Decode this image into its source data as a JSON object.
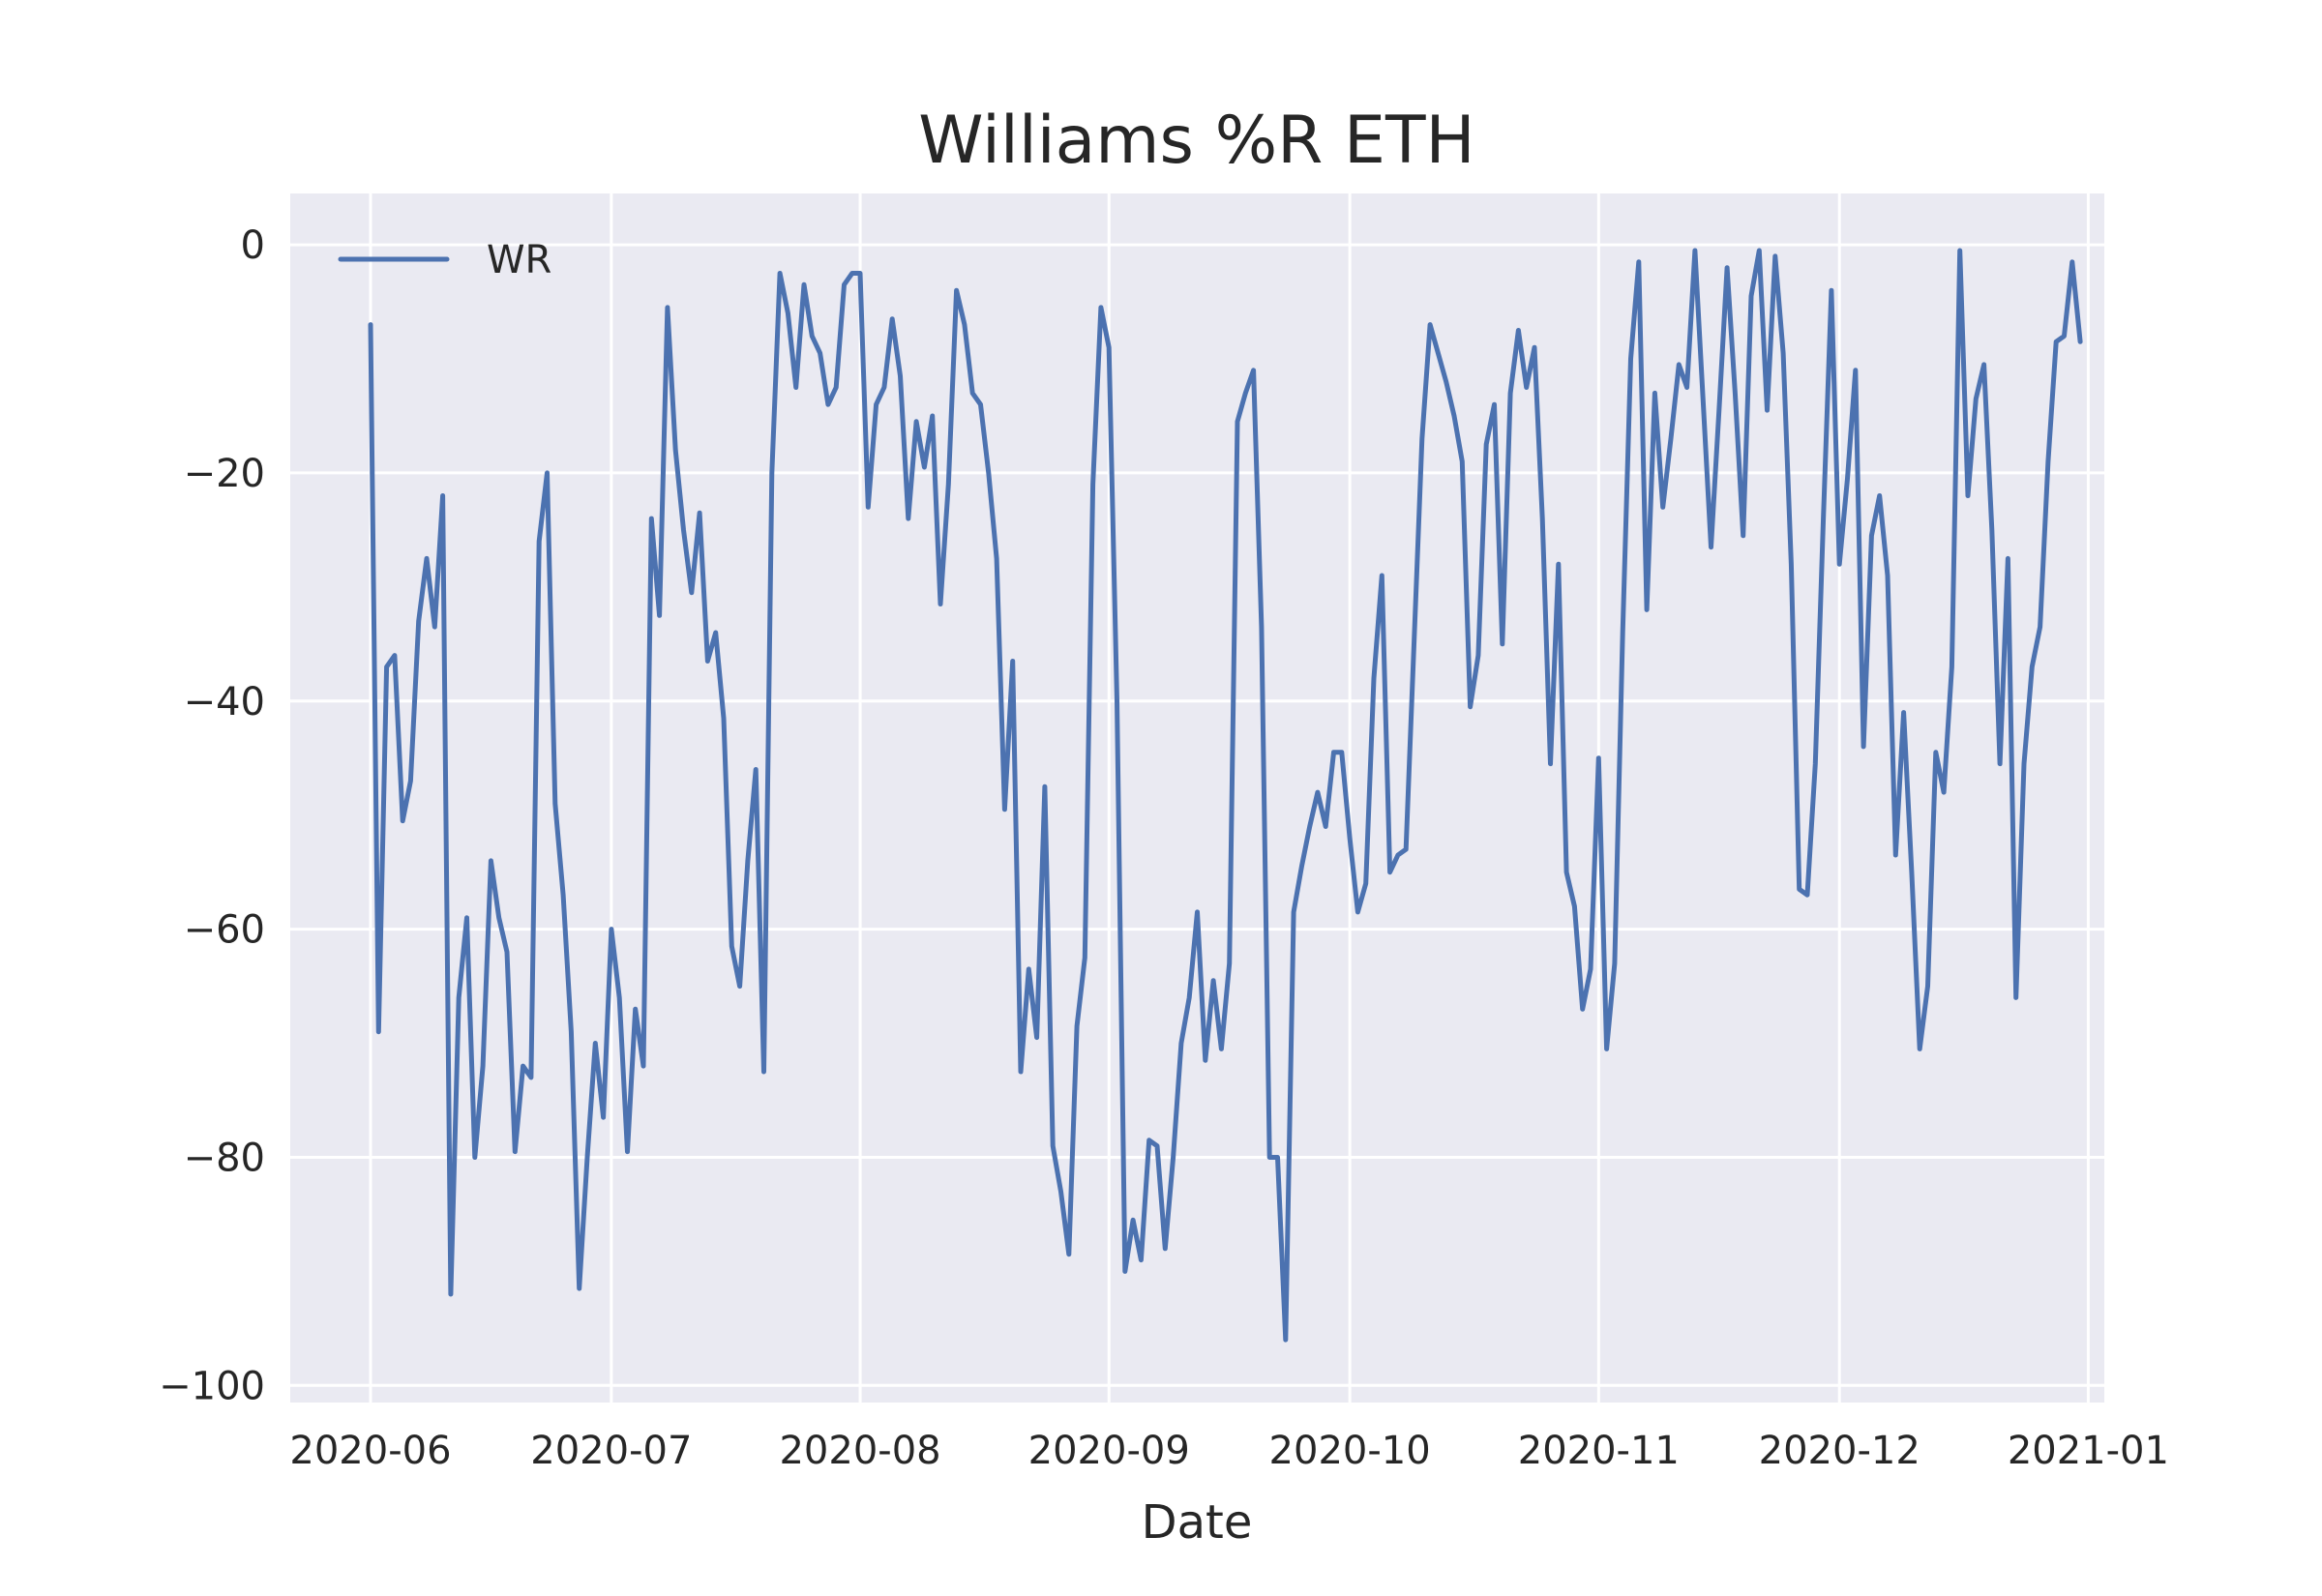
{
  "chart_data": {
    "type": "line",
    "title": "Williams %R ETH",
    "xlabel": "Date",
    "ylabel": "",
    "x_range": [
      "2020-05-22",
      "2021-01-03"
    ],
    "ylim": [
      -101.5,
      4.5
    ],
    "grid": true,
    "legend_placement": "top-left",
    "x_ticks": [
      "2020-06-01",
      "2020-07-01",
      "2020-08-01",
      "2020-09-01",
      "2020-10-01",
      "2020-11-01",
      "2020-12-01",
      "2021-01-01"
    ],
    "x_tick_labels": [
      "2020-06",
      "2020-07",
      "2020-08",
      "2020-09",
      "2020-10",
      "2020-11",
      "2020-12",
      "2021-01"
    ],
    "y_ticks": [
      0,
      -20,
      -40,
      -60,
      -80,
      -100
    ],
    "y_tick_labels": [
      "0",
      "−20",
      "−40",
      "−60",
      "−80",
      "−100"
    ],
    "series": [
      {
        "name": "WR",
        "color": "#4c72b0",
        "x": [
          "2020-06-01",
          "2020-06-02",
          "2020-06-03",
          "2020-06-04",
          "2020-06-05",
          "2020-06-06",
          "2020-06-07",
          "2020-06-08",
          "2020-06-09",
          "2020-06-10",
          "2020-06-11",
          "2020-06-12",
          "2020-06-13",
          "2020-06-14",
          "2020-06-15",
          "2020-06-16",
          "2020-06-17",
          "2020-06-18",
          "2020-06-19",
          "2020-06-20",
          "2020-06-21",
          "2020-06-22",
          "2020-06-23",
          "2020-06-24",
          "2020-06-25",
          "2020-06-26",
          "2020-06-27",
          "2020-06-28",
          "2020-06-29",
          "2020-06-30",
          "2020-07-01",
          "2020-07-02",
          "2020-07-03",
          "2020-07-04",
          "2020-07-05",
          "2020-07-06",
          "2020-07-07",
          "2020-07-08",
          "2020-07-09",
          "2020-07-10",
          "2020-07-11",
          "2020-07-12",
          "2020-07-13",
          "2020-07-14",
          "2020-07-15",
          "2020-07-16",
          "2020-07-17",
          "2020-07-18",
          "2020-07-19",
          "2020-07-20",
          "2020-07-21",
          "2020-07-22",
          "2020-07-23",
          "2020-07-24",
          "2020-07-25",
          "2020-07-26",
          "2020-07-27",
          "2020-07-28",
          "2020-07-29",
          "2020-07-30",
          "2020-07-31",
          "2020-08-01",
          "2020-08-02",
          "2020-08-03",
          "2020-08-04",
          "2020-08-05",
          "2020-08-06",
          "2020-08-07",
          "2020-08-08",
          "2020-08-09",
          "2020-08-10",
          "2020-08-11",
          "2020-08-12",
          "2020-08-13",
          "2020-08-14",
          "2020-08-15",
          "2020-08-16",
          "2020-08-17",
          "2020-08-18",
          "2020-08-19",
          "2020-08-20",
          "2020-08-21",
          "2020-08-22",
          "2020-08-23",
          "2020-08-24",
          "2020-08-25",
          "2020-08-26",
          "2020-08-27",
          "2020-08-28",
          "2020-08-29",
          "2020-08-30",
          "2020-08-31",
          "2020-09-01",
          "2020-09-02",
          "2020-09-03",
          "2020-09-04",
          "2020-09-05",
          "2020-09-06",
          "2020-09-07",
          "2020-09-08",
          "2020-09-09",
          "2020-09-10",
          "2020-09-11",
          "2020-09-12",
          "2020-09-13",
          "2020-09-14",
          "2020-09-15",
          "2020-09-16",
          "2020-09-17",
          "2020-09-18",
          "2020-09-19",
          "2020-09-20",
          "2020-09-21",
          "2020-09-22",
          "2020-09-23",
          "2020-09-24",
          "2020-09-25",
          "2020-09-26",
          "2020-09-27",
          "2020-09-28",
          "2020-09-29",
          "2020-09-30",
          "2020-10-01",
          "2020-10-02",
          "2020-10-03",
          "2020-10-04",
          "2020-10-05",
          "2020-10-06",
          "2020-10-07",
          "2020-10-08",
          "2020-10-09",
          "2020-10-10",
          "2020-10-11",
          "2020-10-12",
          "2020-10-13",
          "2020-10-14",
          "2020-10-15",
          "2020-10-16",
          "2020-10-17",
          "2020-10-18",
          "2020-10-19",
          "2020-10-20",
          "2020-10-21",
          "2020-10-22",
          "2020-10-23",
          "2020-10-24",
          "2020-10-25",
          "2020-10-26",
          "2020-10-27",
          "2020-10-28",
          "2020-10-29",
          "2020-10-30",
          "2020-10-31",
          "2020-11-01",
          "2020-11-02",
          "2020-11-03",
          "2020-11-04",
          "2020-11-05",
          "2020-11-06",
          "2020-11-07",
          "2020-11-08",
          "2020-11-09",
          "2020-11-10",
          "2020-11-11",
          "2020-11-12",
          "2020-11-13",
          "2020-11-14",
          "2020-11-15",
          "2020-11-16",
          "2020-11-17",
          "2020-11-18",
          "2020-11-19",
          "2020-11-20",
          "2020-11-21",
          "2020-11-22",
          "2020-11-23",
          "2020-11-24",
          "2020-11-25",
          "2020-11-26",
          "2020-11-27",
          "2020-11-28",
          "2020-11-29",
          "2020-11-30",
          "2020-12-01",
          "2020-12-02",
          "2020-12-03",
          "2020-12-04",
          "2020-12-05",
          "2020-12-06",
          "2020-12-07",
          "2020-12-08",
          "2020-12-09",
          "2020-12-10",
          "2020-12-11",
          "2020-12-12",
          "2020-12-13",
          "2020-12-14",
          "2020-12-15",
          "2020-12-16",
          "2020-12-17",
          "2020-12-18",
          "2020-12-19",
          "2020-12-20",
          "2020-12-21",
          "2020-12-22",
          "2020-12-23",
          "2020-12-24",
          "2020-12-25",
          "2020-12-26",
          "2020-12-27",
          "2020-12-28",
          "2020-12-29",
          "2020-12-30",
          "2020-12-31"
        ],
        "y": [
          -7,
          -69,
          -37,
          -36,
          -50.5,
          -47,
          -33,
          -27.5,
          -33.5,
          -22,
          -92,
          -66,
          -59,
          -80,
          -72,
          -54,
          -59,
          -62,
          -79.5,
          -72,
          -73,
          -26,
          -20,
          -49,
          -57,
          -69,
          -91.5,
          -80,
          -70,
          -76.5,
          -60,
          -66,
          -79.5,
          -67,
          -72,
          -24,
          -32.5,
          -5.5,
          -18,
          -25,
          -30.5,
          -23.5,
          -36.5,
          -34,
          -41.5,
          -61.5,
          -65,
          -54,
          -46,
          -72.5,
          -20,
          -2.5,
          -6,
          -12.5,
          -3.5,
          -8,
          -9.5,
          -14,
          -12.5,
          -3.5,
          -2.5,
          -2.5,
          -23,
          -14,
          -12.5,
          -6.5,
          -11.5,
          -24,
          -15.5,
          -19.5,
          -15,
          -31.5,
          -21,
          -4,
          -7,
          -13,
          -14,
          -20,
          -27.5,
          -49.5,
          -36.5,
          -72.5,
          -63.5,
          -69.5,
          -47.5,
          -79,
          -83,
          -88.5,
          -68.5,
          -62.5,
          -21,
          -5.5,
          -9,
          -40,
          -90,
          -85.5,
          -89,
          -78.5,
          -79,
          -88,
          -80,
          -70,
          -66,
          -58.5,
          -71.5,
          -64.5,
          -70.5,
          -63,
          -15.5,
          -13,
          -11,
          -33.5,
          -80,
          -80,
          -96,
          -58.5,
          -54.5,
          -51,
          -48,
          -51,
          -44.5,
          -44.5,
          -52,
          -58.5,
          -56,
          -38,
          -29,
          -55,
          -53.5,
          -53,
          -35,
          -17,
          -7,
          -9.5,
          -12,
          -15,
          -19,
          -40.5,
          -36,
          -17.5,
          -14,
          -35,
          -13,
          -7.5,
          -12.5,
          -9,
          -24,
          -45.5,
          -28,
          -55,
          -58,
          -67,
          -63.5,
          -45,
          -70.5,
          -63,
          -34,
          -10,
          -1.5,
          -32,
          -13,
          -23,
          -17,
          -10.5,
          -12.5,
          -0.5,
          -13.5,
          -26.5,
          -14.5,
          -2,
          -13,
          -25.5,
          -4.5,
          -0.5,
          -14.5,
          -1,
          -9.5,
          -28,
          -56.5,
          -57,
          -45.5,
          -24,
          -4,
          -28,
          -20.5,
          -11,
          -44,
          -25.5,
          -22,
          -29,
          -53.5,
          -41,
          -55,
          -70.5,
          -65,
          -44.5,
          -48,
          -37,
          -0.5,
          -22,
          -13.5,
          -10.5,
          -25,
          -45.5,
          -27.5,
          -66,
          -45.5,
          -37,
          -33.5,
          -19,
          -8.5,
          -8,
          -1.5,
          -8.5
        ]
      }
    ]
  }
}
